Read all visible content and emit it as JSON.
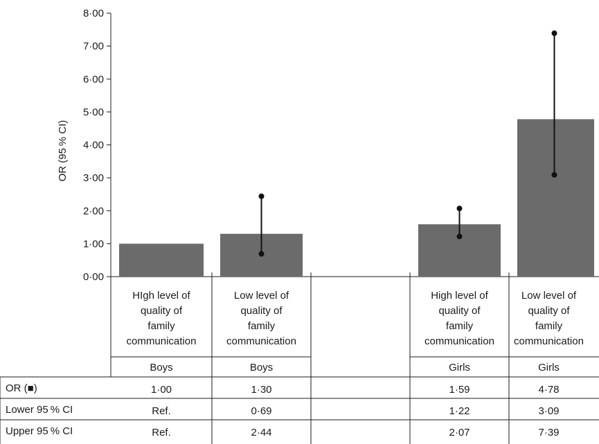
{
  "chart_data": {
    "type": "bar",
    "ylabel": "OR (95 % CI)",
    "ylim": [
      0,
      8
    ],
    "yticks": [
      "0·00",
      "1·00",
      "2·00",
      "3·00",
      "4·00",
      "5·00",
      "6·00",
      "7·00",
      "8·00"
    ],
    "bar_color": "#6b6b6b",
    "categories": [
      {
        "label": "HIgh level of quality of family communication",
        "lines": [
          "HIgh level of",
          "quality of",
          "family",
          "communication"
        ],
        "group": "Boys"
      },
      {
        "label": "Low level of quality of family communication",
        "lines": [
          "Low level of",
          "quality of",
          "family",
          "communication"
        ],
        "group": "Boys"
      },
      {
        "label": "",
        "lines": [],
        "group": ""
      },
      {
        "label": "High level of quality of family communication",
        "lines": [
          "High level of",
          "quality of",
          "family",
          "communication"
        ],
        "group": "Girls"
      },
      {
        "label": "Low level of quality of family communication",
        "lines": [
          "Low level of",
          "quality of",
          "family",
          "communication"
        ],
        "group": "Girls"
      }
    ],
    "values": [
      1.0,
      1.3,
      null,
      1.59,
      4.78
    ],
    "ci_lower": [
      null,
      0.69,
      null,
      1.22,
      3.09
    ],
    "ci_upper": [
      null,
      2.44,
      null,
      2.07,
      7.39
    ],
    "table": {
      "rows": [
        {
          "header": "OR (■)",
          "cells": [
            "1·00",
            "1·30",
            "",
            "1·59",
            "4·78"
          ]
        },
        {
          "header": "Lower 95 % CI",
          "cells": [
            "Ref.",
            "0·69",
            "",
            "1·22",
            "3·09"
          ]
        },
        {
          "header": "Upper 95 % CI",
          "cells": [
            "Ref.",
            "2·44",
            "",
            "2·07",
            "7·39"
          ]
        }
      ]
    }
  }
}
